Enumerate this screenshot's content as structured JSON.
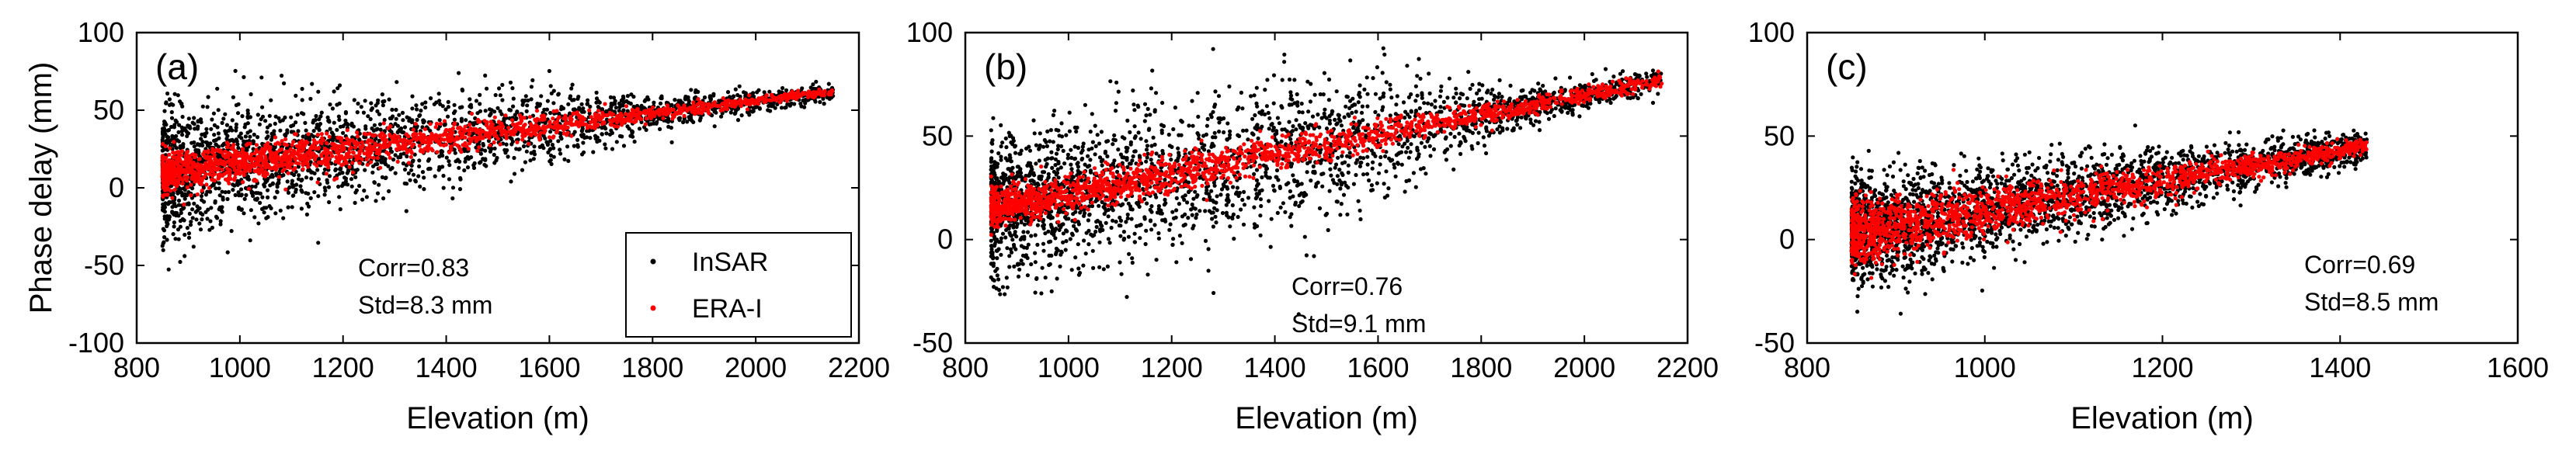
{
  "chart_data": [
    {
      "type": "scatter",
      "panel_label": "(a)",
      "xlabel": "Elevation (m)",
      "ylabel": "Phase delay (mm)",
      "xlim": [
        800,
        2200
      ],
      "ylim": [
        -100,
        100
      ],
      "xticks": [
        "800",
        "1000",
        "1200",
        "1400",
        "1600",
        "1800",
        "2000",
        "2200"
      ],
      "yticks": [
        "-100",
        "-50",
        "0",
        "50",
        "100"
      ],
      "series": [
        {
          "name": "InSAR",
          "color": "#000000",
          "marker": "point"
        },
        {
          "name": "ERA-I",
          "color": "#ff0000",
          "marker": "point"
        }
      ],
      "legend": {
        "position": "bottom-right",
        "entries": [
          "InSAR",
          "ERA-I"
        ]
      },
      "annotations": [
        "Corr=0.83",
        "Std=8.3 mm"
      ],
      "stats": {
        "corr": 0.83,
        "std_mm": 8.3
      },
      "trend": {
        "x0": 850,
        "y0": 10,
        "x1": 2150,
        "y1": 62
      },
      "insar_spread": {
        "x": [
          850,
          1000,
          1200,
          1400,
          1600,
          1750,
          1900,
          2150
        ],
        "half_width": [
          38,
          34,
          30,
          26,
          22,
          14,
          8,
          5
        ]
      },
      "era_spread": {
        "x": [
          850,
          1200,
          1600,
          1800,
          2150
        ],
        "half_width": [
          12,
          10,
          8,
          4,
          2
        ]
      }
    },
    {
      "type": "scatter",
      "panel_label": "(b)",
      "xlabel": "Elevation (m)",
      "ylabel": "",
      "xlim": [
        800,
        2200
      ],
      "ylim": [
        -50,
        100
      ],
      "xticks": [
        "800",
        "1000",
        "1200",
        "1400",
        "1600",
        "1800",
        "2000",
        "2200"
      ],
      "yticks": [
        "-50",
        "0",
        "50",
        "100"
      ],
      "series": [
        {
          "name": "InSAR",
          "color": "#000000",
          "marker": "point"
        },
        {
          "name": "ERA-I",
          "color": "#ff0000",
          "marker": "point"
        }
      ],
      "annotations": [
        "Corr=0.76",
        "Std=9.1 mm"
      ],
      "stats": {
        "corr": 0.76,
        "std_mm": 9.1
      },
      "trend": {
        "x0": 850,
        "y0": 15,
        "x1": 2150,
        "y1": 77
      },
      "insar_spread": {
        "x": [
          850,
          1000,
          1200,
          1400,
          1600,
          1750,
          1900,
          2150
        ],
        "half_width": [
          30,
          32,
          34,
          34,
          28,
          16,
          8,
          5
        ]
      },
      "era_spread": {
        "x": [
          850,
          1200,
          1600,
          1800,
          2150
        ],
        "half_width": [
          8,
          8,
          7,
          4,
          3
        ]
      }
    },
    {
      "type": "scatter",
      "panel_label": "(c)",
      "xlabel": "Elevation (m)",
      "ylabel": "",
      "xlim": [
        800,
        1600
      ],
      "ylim": [
        -50,
        100
      ],
      "xticks": [
        "800",
        "1000",
        "1200",
        "1400",
        "1600"
      ],
      "yticks": [
        "-50",
        "0",
        "50",
        "100"
      ],
      "series": [
        {
          "name": "InSAR",
          "color": "#000000",
          "marker": "point"
        },
        {
          "name": "ERA-I",
          "color": "#ff0000",
          "marker": "point"
        }
      ],
      "annotations": [
        "Corr=0.69",
        "Std=8.5 mm"
      ],
      "stats": {
        "corr": 0.69,
        "std_mm": 8.5
      },
      "trend": {
        "x0": 850,
        "y0": 3,
        "x1": 1430,
        "y1": 45
      },
      "insar_spread": {
        "x": [
          850,
          950,
          1100,
          1250,
          1430
        ],
        "half_width": [
          24,
          22,
          18,
          12,
          8
        ]
      },
      "era_spread": {
        "x": [
          850,
          950,
          1100,
          1250,
          1430
        ],
        "half_width": [
          14,
          12,
          9,
          6,
          3
        ]
      }
    }
  ]
}
